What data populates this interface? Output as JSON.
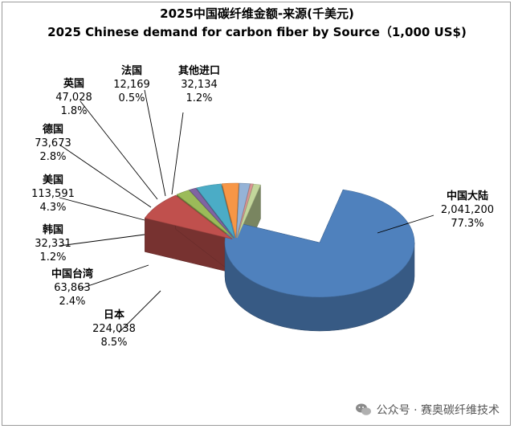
{
  "chart_data": {
    "type": "pie",
    "title": "2025中国碳纤维金额-来源(千美元)",
    "subtitle": "2025 Chinese demand for carbon fiber by Source（1,000 US$)",
    "slices": [
      {
        "name": "中国大陆",
        "value": "2,041,200",
        "percent": "77.3%",
        "color": "#4f81bd"
      },
      {
        "name": "日本",
        "value": "224,038",
        "percent": "8.5%",
        "color": "#c0504d"
      },
      {
        "name": "中国台湾",
        "value": "63,863",
        "percent": "2.4%",
        "color": "#9bbb59"
      },
      {
        "name": "韩国",
        "value": "32,331",
        "percent": "1.2%",
        "color": "#8064a2"
      },
      {
        "name": "美国",
        "value": "113,591",
        "percent": "4.3%",
        "color": "#4bacc6"
      },
      {
        "name": "德国",
        "value": "73,673",
        "percent": "2.8%",
        "color": "#f79646"
      },
      {
        "name": "英国",
        "value": "47,028",
        "percent": "1.8%",
        "color": "#95b3d7"
      },
      {
        "name": "法国",
        "value": "12,169",
        "percent": "0.5%",
        "color": "#d99694"
      },
      {
        "name": "其他进口",
        "value": "32,134",
        "percent": "1.2%",
        "color": "#c3d69b"
      }
    ],
    "percent_values": [
      77.3,
      8.5,
      2.4,
      1.2,
      4.3,
      2.8,
      1.8,
      0.5,
      1.2
    ]
  },
  "watermark": {
    "text": "公众号 · 赛奥碳纤维技术",
    "icon": "wechat-icon"
  }
}
